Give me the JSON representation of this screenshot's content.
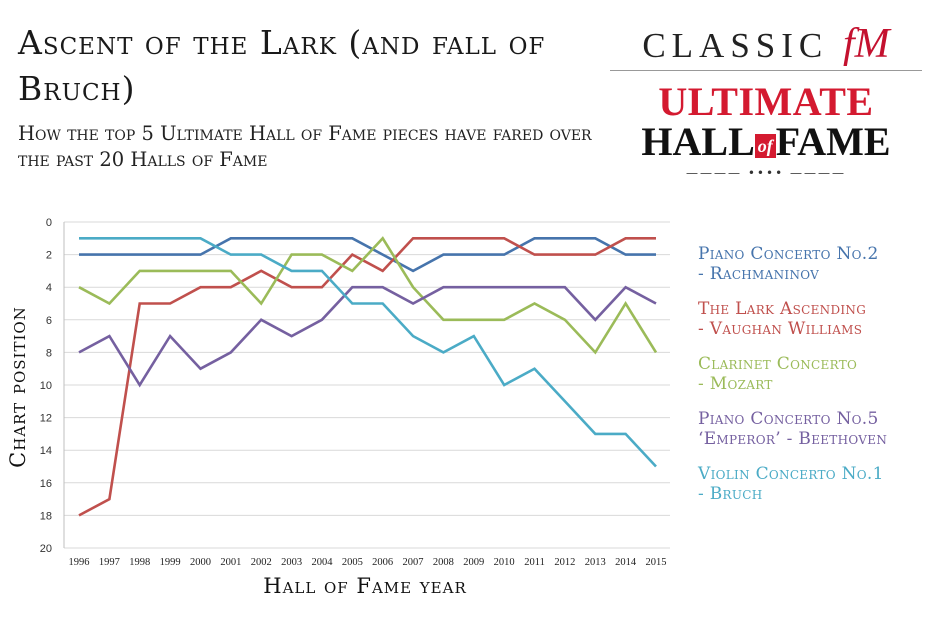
{
  "header": {
    "title": "Ascent of the Lark (and fall of Bruch)",
    "subtitle": "How the top 5 Ultimate Hall of Fame pieces have fared over the past 20 Halls of Fame"
  },
  "logo": {
    "brand": "CLASSIC",
    "fm": "fM",
    "ultimate": "ULTIMATE",
    "hall": "HALL",
    "of": "of",
    "fame": "FAME",
    "accent_color": "#d41a30"
  },
  "chart_data": {
    "type": "line",
    "title": "Ascent of the Lark (and fall of Bruch)",
    "xlabel": "Hall of Fame year",
    "ylabel": "Chart position",
    "ylim": [
      0,
      20
    ],
    "y_inverted": true,
    "y_ticks": [
      "0",
      "2",
      "4",
      "6",
      "8",
      "10",
      "12",
      "14",
      "16",
      "18",
      "20"
    ],
    "categories": [
      "1996",
      "1997",
      "1998",
      "1999",
      "2000",
      "2001",
      "2002",
      "2003",
      "2004",
      "2005",
      "2006",
      "2007",
      "2008",
      "2009",
      "2010",
      "2011",
      "2012",
      "2013",
      "2014",
      "2015"
    ],
    "grid": true,
    "legend_position": "right",
    "series": [
      {
        "name": "Piano Concerto No.2",
        "composer": "- Rachmaninov",
        "color": "#4674ac",
        "values": [
          2,
          2,
          2,
          2,
          2,
          1,
          1,
          1,
          1,
          1,
          2,
          3,
          2,
          2,
          2,
          1,
          1,
          1,
          2,
          2
        ]
      },
      {
        "name": "The Lark Ascending",
        "composer": "- Vaughan Williams",
        "color": "#c0504d",
        "values": [
          18,
          17,
          5,
          5,
          4,
          4,
          3,
          4,
          4,
          2,
          3,
          1,
          1,
          1,
          1,
          2,
          2,
          2,
          1,
          1
        ]
      },
      {
        "name": "Clarinet Concerto",
        "composer": "- Mozart",
        "color": "#9bbb59",
        "values": [
          4,
          5,
          3,
          3,
          3,
          3,
          5,
          2,
          2,
          3,
          1,
          4,
          6,
          6,
          6,
          5,
          6,
          8,
          5,
          8
        ]
      },
      {
        "name": "Piano Concerto No.5",
        "composer": "‘Emperor’ - Beethoven",
        "color": "#7560a0",
        "values": [
          8,
          7,
          10,
          7,
          9,
          8,
          6,
          7,
          6,
          4,
          4,
          5,
          4,
          4,
          4,
          4,
          4,
          6,
          4,
          5
        ]
      },
      {
        "name": "Violin Concerto No.1",
        "composer": "- Bruch",
        "color": "#4babc6",
        "values": [
          1,
          1,
          1,
          1,
          1,
          2,
          2,
          3,
          3,
          5,
          5,
          7,
          8,
          7,
          10,
          9,
          11,
          13,
          13,
          15
        ]
      }
    ]
  }
}
